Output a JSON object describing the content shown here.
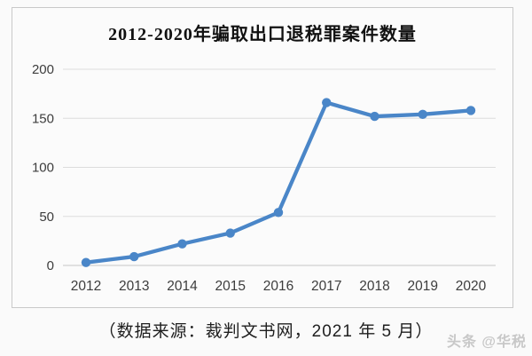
{
  "title": "2012-2020年骗取出口退税罪案件数量",
  "caption": "（数据来源：裁判文书网，2021 年 5 月）",
  "watermark": "头条 @华税",
  "colors": {
    "line": "#4a86c8",
    "grid": "#dcdcdc",
    "baseline": "#c6c6c6",
    "axis_text": "#3d3d3d",
    "frame_border": "#c9c9c9",
    "watermark": "#c8c8c8"
  },
  "chart_data": {
    "type": "line",
    "categories": [
      "2012",
      "2013",
      "2014",
      "2015",
      "2016",
      "2017",
      "2018",
      "2019",
      "2020"
    ],
    "values": [
      3,
      9,
      22,
      33,
      54,
      166,
      152,
      154,
      158
    ],
    "series_name": "骗取出口退税罪案件数量",
    "title": "2012-2020年骗取出口退税罪案件数量",
    "xlabel": "",
    "ylabel": "",
    "ylim": [
      0,
      200
    ],
    "yticks": [
      0,
      50,
      100,
      150,
      200
    ],
    "grid": true,
    "legend": false,
    "marker": "circle"
  }
}
